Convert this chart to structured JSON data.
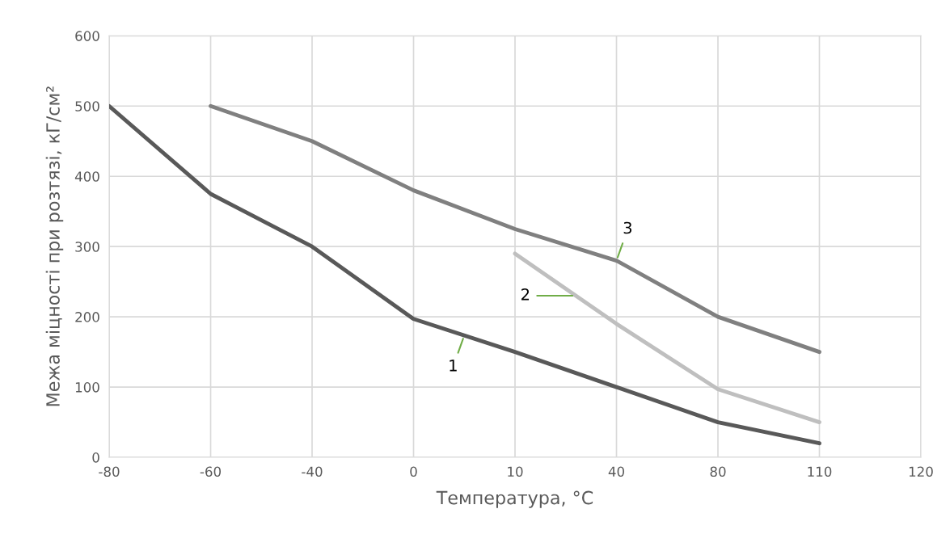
{
  "chart_data": {
    "type": "line",
    "xlabel": "Температура, °C",
    "ylabel": "Межа міцності при розтязі, кГ/см²",
    "categories": [
      "-80",
      "-60",
      "-40",
      "0",
      "10",
      "40",
      "80",
      "110",
      "120"
    ],
    "series": [
      {
        "name": "1",
        "color": "#595959",
        "values": [
          500,
          375,
          300,
          197,
          150,
          100,
          50,
          20,
          null
        ]
      },
      {
        "name": "2",
        "color": "#bfbfbf",
        "values": [
          null,
          null,
          null,
          null,
          290,
          190,
          97,
          50,
          null
        ]
      },
      {
        "name": "3",
        "color": "#808080",
        "values": [
          null,
          500,
          450,
          380,
          325,
          280,
          200,
          150,
          null
        ]
      }
    ],
    "ylim": [
      0,
      600
    ],
    "yticks": [
      0,
      100,
      200,
      300,
      400,
      500,
      600
    ],
    "grid": true,
    "legend": false,
    "marker": "none",
    "line_style": "solid"
  }
}
